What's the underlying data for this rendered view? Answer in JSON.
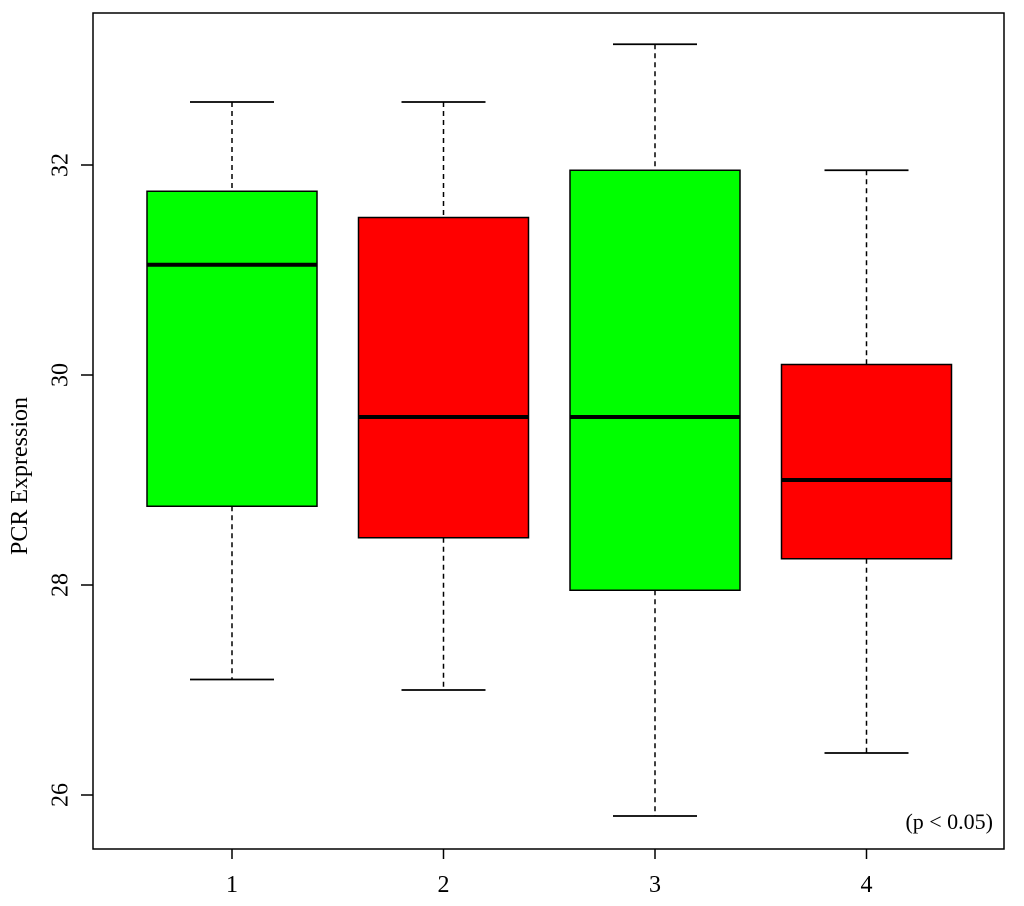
{
  "chart_data": {
    "type": "box",
    "title": "",
    "xlabel": "",
    "ylabel": "PCR Expression",
    "annotation": "(p < 0.05)",
    "categories": [
      "1",
      "2",
      "3",
      "4"
    ],
    "yticks": [
      "26",
      "28",
      "30",
      "32"
    ],
    "ylim": [
      25.5,
      33.5
    ],
    "boxes": [
      {
        "category": "1",
        "min": 27.1,
        "q1": 28.75,
        "median": 31.05,
        "q3": 31.75,
        "max": 32.6,
        "color": "#00ff00"
      },
      {
        "category": "2",
        "min": 27.0,
        "q1": 28.45,
        "median": 29.6,
        "q3": 31.5,
        "max": 32.6,
        "color": "#ff0000"
      },
      {
        "category": "3",
        "min": 25.8,
        "q1": 27.95,
        "median": 29.6,
        "q3": 31.95,
        "max": 33.15,
        "color": "#00ff00"
      },
      {
        "category": "4",
        "min": 26.4,
        "q1": 28.25,
        "median": 29.0,
        "q3": 30.1,
        "max": 31.95,
        "color": "#ff0000"
      }
    ],
    "grid": false,
    "legend": "none"
  }
}
